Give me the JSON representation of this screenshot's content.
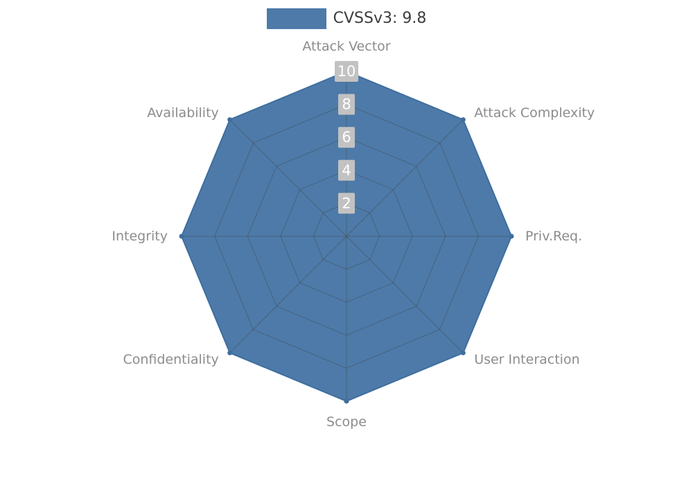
{
  "chart_data": {
    "type": "radar",
    "title": "CVSSv3: 9.8",
    "legend": {
      "label": "CVSSv3: 9.8",
      "position": "top"
    },
    "categories": [
      "Attack Vector",
      "Attack Complexity",
      "Priv.Req.",
      "User Interaction",
      "Scope",
      "Confidentiality",
      "Integrity",
      "Availability"
    ],
    "series": [
      {
        "name": "CVSSv3: 9.8",
        "values": [
          10,
          10,
          10,
          10,
          10,
          10,
          10,
          10
        ]
      }
    ],
    "radial_ticks": [
      2,
      4,
      6,
      8,
      10
    ],
    "rlim": [
      0,
      10
    ],
    "grid": "on",
    "colors": {
      "fill": "#4d7aa9",
      "stroke": "#3e6e9e",
      "grid": "#444444",
      "tick_box": "#c2c2c2",
      "tick_text": "#ffffff",
      "category_label": "#8c8c8c",
      "legend_text": "#3c3c3c"
    }
  }
}
